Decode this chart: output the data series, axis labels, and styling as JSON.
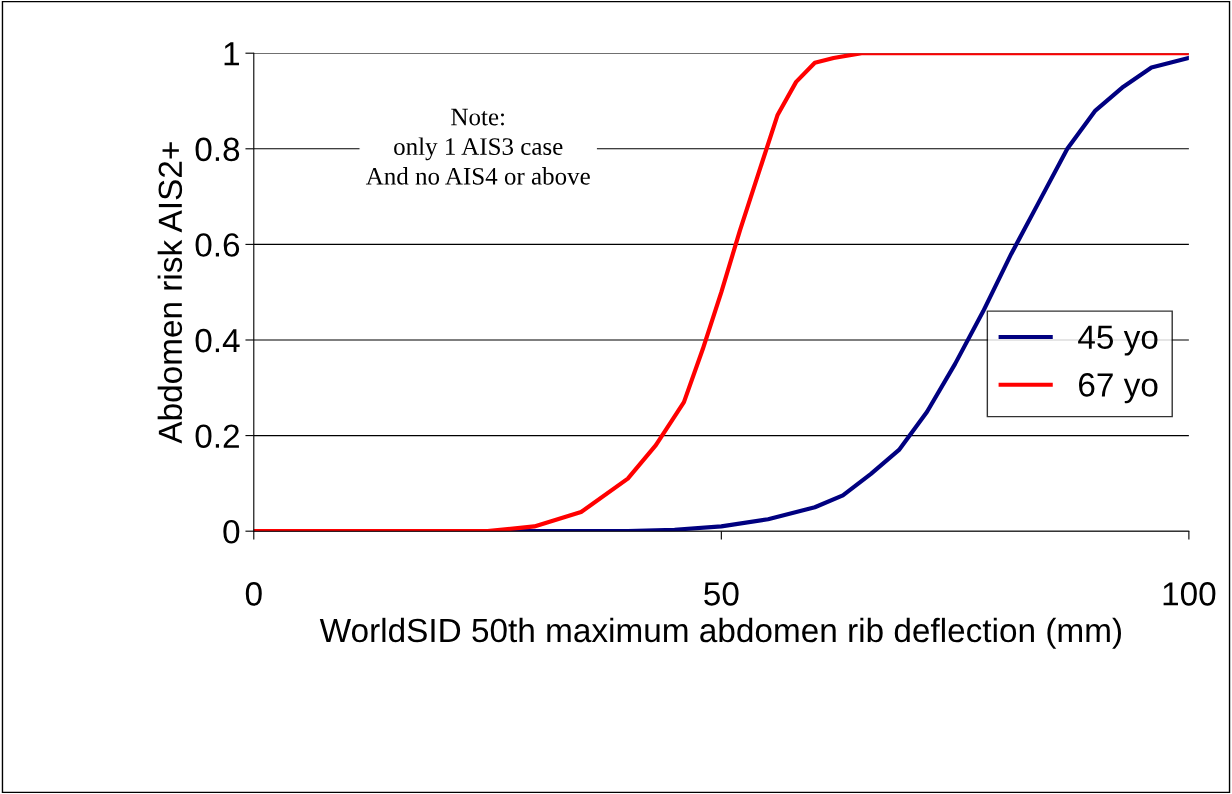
{
  "chart_data": {
    "type": "line",
    "xlabel": "WorldSID 50th maximum abdomen rib deflection (mm)",
    "ylabel": "Abdomen risk AIS2+",
    "annotations": [
      "Note:\nonly 1 AIS3 case\nAnd no AIS4 or above"
    ],
    "series": [
      {
        "name": "45 yo",
        "color": "#000080",
        "x": [
          0,
          40,
          45,
          50,
          55,
          60,
          63,
          66,
          69,
          72,
          75,
          78,
          81,
          84,
          87,
          90,
          93,
          96,
          100
        ],
        "values": [
          0,
          0,
          0.003,
          0.01,
          0.025,
          0.05,
          0.075,
          0.12,
          0.17,
          0.25,
          0.35,
          0.46,
          0.58,
          0.69,
          0.8,
          0.88,
          0.93,
          0.97,
          0.99
        ]
      },
      {
        "name": "67 yo",
        "color": "#ff0000",
        "x": [
          0,
          25,
          30,
          35,
          40,
          43,
          46,
          48,
          50,
          52,
          54,
          56,
          58,
          60,
          62,
          65,
          100
        ],
        "values": [
          0,
          0,
          0.01,
          0.04,
          0.11,
          0.18,
          0.27,
          0.38,
          0.5,
          0.63,
          0.75,
          0.87,
          0.94,
          0.98,
          0.99,
          1,
          1
        ]
      }
    ],
    "xlim": [
      0,
      100
    ],
    "xticks": [
      0,
      50,
      100
    ],
    "ylim": [
      0,
      1
    ],
    "yticks": [
      0,
      0.2,
      0.4,
      0.6,
      0.8,
      1
    ],
    "grid": "y",
    "legend": "right",
    "marker": "none",
    "line_style": "solid"
  }
}
